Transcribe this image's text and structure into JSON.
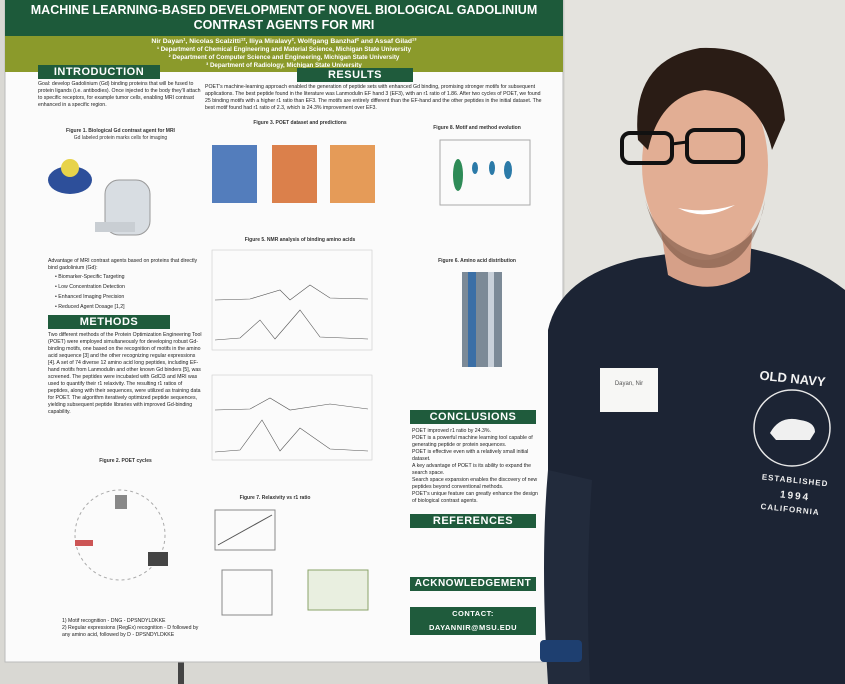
{
  "poster": {
    "title": "MACHINE LEARNING-BASED DEVELOPMENT OF NOVEL BIOLOGICAL GADOLINIUM CONTRAST AGENTS FOR MRI",
    "authors": "Nir Dayan¹, Nicolas Scalzitti¹², Iliya Miralavy², Wolfgang Banzhaf² and Assaf Gilad¹³",
    "affiliations": [
      "¹ Department of Chemical Engineering and Material Science, Michigan State University",
      "² Department of Computer Science and Engineering, Michigan State University",
      "³ Department of Radiology, Michigan State University"
    ],
    "introduction": {
      "heading": "INTRODUCTION",
      "text": "Goal: develop Gadolinium (Gd) binding proteins that will be fused to protein ligands (i.e. antibodies). Once injected to the body they'll attach to specific receptors, for example tumor cells, enabling MRI contrast enhanced in a specific region.",
      "figure_caption": "Figure 1. Biological Gd contrast agent for MRI",
      "figure_subcaption": "Gd labeled protein marks cells for imaging",
      "advantage": "Advantage of MRI contrast agents based on proteins that directly bind gadolinium (Gd):",
      "bullets": [
        "Biomarker-Specific Targeting",
        "Low Concentration Detection",
        "Enhanced Imaging Precision",
        "Reduced Agent Dosage [1,2]"
      ]
    },
    "methods": {
      "heading": "METHODS",
      "text": "Two different methods of the Protein Optimization Engineering Tool (POET) were employed simultaneously for developing robust Gd-binding motifs, one based on the recognition of motifs in the amino acid sequence [3] and the other recognizing regular expressions [4]. A set of 74 diverse 12 amino acid long peptides, including EF-hand motifs from Lanmodulin and other known Gd binders [5], was screened. The peptides were incubated with GdCl3 and MRI was used to quantify their r1 relaxivity. The resulting r1 ratios of peptides, along with their sequences, were utilized as training data for POET. The algorithm iteratively optimized peptide sequences, yielding subsequent peptide libraries with improved Gd-binding capability.",
      "figure_caption": "Figure 2. POET cycles",
      "steps": [
        "1) Motif recognition - DNG - DPSNDYLDKKE",
        "2) Regular expressions (RegEx) recognition - D followed by any amino acid, followed by D - DPSNDYLDKKE"
      ]
    },
    "results": {
      "heading": "RESULTS",
      "text": "POET's machine-learning approach enabled the generation of peptide sets with enhanced Gd binding, promising stronger motifs for subsequent applications. The best peptide found in the literature was Lanmodulin EF hand 3 (EF3), with an r1 ratio of 1.86. After two cycles of POET, we found 25 binding motifs with a higher r1 ratio than EF3. The motifs are entirely different than the EF-hand and the other peptides in the initial dataset. The best motif found had r1 ratio of 2.3, which is 24.3% improvement over EF3.",
      "figure3": "Figure 3. POET dataset and predictions",
      "figure5": "Figure 5. NMR analysis of binding amino acids",
      "figure7": "Figure 7. Relaxivity vs r1 ratio",
      "figure8": "Figure 8. Motif and method evolution",
      "figure6": "Figure 6. Amino acid distribution"
    },
    "conclusions": {
      "heading": "CONCLUSIONS",
      "bullets": [
        "POET improved r1 ratio by 24.3%.",
        "POET is a powerful machine learning tool capable of generating peptide or protein sequences.",
        "POET is effective even with a relatively small initial dataset.",
        "A key advantage of POET is its ability to expand the search space.",
        "Search space expansion enables the discovery of new peptides beyond conventional methods.",
        "POET's unique feature can greatly enhance the design of biological contrast agents."
      ]
    },
    "references_heading": "REFERENCES",
    "acknowledgement_heading": "ACKNOWLEDGEMENT",
    "contact": "CONTACT: DAYANNIR@MSU.EDU"
  },
  "name_tag": "Dayan, Nir",
  "shirt": {
    "brand": "OLD NAVY",
    "established": "ESTABLISHED",
    "year": "1994",
    "state": "CALIFORNIA"
  }
}
